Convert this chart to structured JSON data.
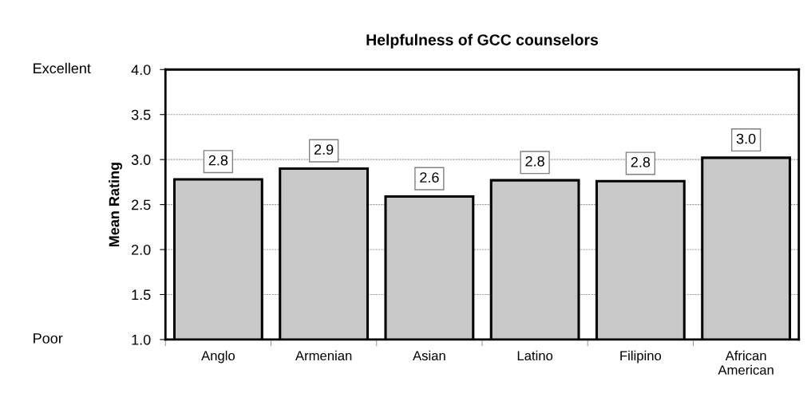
{
  "chart_data": {
    "type": "bar",
    "title": "Helpfulness of GCC counselors",
    "ylabel": "Mean Rating",
    "categories": [
      "Anglo",
      "Armenian",
      "Asian",
      "Latino",
      "Filipino",
      "African\nAmerican"
    ],
    "values": [
      2.78,
      2.9,
      2.59,
      2.77,
      2.76,
      3.02
    ],
    "value_labels": [
      "2.8",
      "2.9",
      "2.6",
      "2.8",
      "2.8",
      "3.0"
    ],
    "color": "#c8c8c8",
    "ylim": [
      1.0,
      4.0
    ],
    "yticks": [
      {
        "value": 1.0,
        "label": "1.0"
      },
      {
        "value": 1.5,
        "label": "1.5"
      },
      {
        "value": 2.0,
        "label": "2.0"
      },
      {
        "value": 2.5,
        "label": "2.5"
      },
      {
        "value": 3.0,
        "label": "3.0"
      },
      {
        "value": 3.5,
        "label": "3.5"
      },
      {
        "value": 4.0,
        "label": "4.0"
      }
    ],
    "grid": "y",
    "legend": false,
    "annotations": [
      "Excellent",
      "Poor"
    ]
  }
}
